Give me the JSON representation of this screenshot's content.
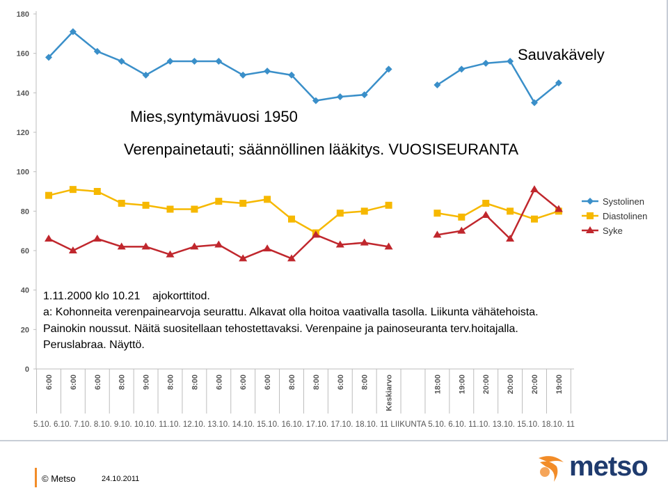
{
  "chart_data": {
    "type": "line",
    "ylim": [
      0,
      180
    ],
    "yticks": [
      0,
      20,
      40,
      60,
      80,
      100,
      120,
      140,
      160,
      180
    ],
    "categories": [
      {
        "time": "6:00",
        "date": "5.10."
      },
      {
        "time": "6:00",
        "date": "6.10."
      },
      {
        "time": "6:00",
        "date": "7.10."
      },
      {
        "time": "8:00",
        "date": "8.10."
      },
      {
        "time": "9:00",
        "date": "9.10."
      },
      {
        "time": "8:00",
        "date": "10.10."
      },
      {
        "time": "8:00",
        "date": "11.10."
      },
      {
        "time": "6:00",
        "date": "12.10."
      },
      {
        "time": "6:00",
        "date": "13.10."
      },
      {
        "time": "6:00",
        "date": "14.10."
      },
      {
        "time": "8:00",
        "date": "15.10."
      },
      {
        "time": "8:00",
        "date": "16.10."
      },
      {
        "time": "6:00",
        "date": "17.10."
      },
      {
        "time": "8:00",
        "date": "17.10."
      },
      {
        "time": "Keskiarvo",
        "date": "18.10.11"
      },
      {
        "time": "",
        "date": "LIIKUNTA"
      },
      {
        "time": "18:00",
        "date": "5.10."
      },
      {
        "time": "19:00",
        "date": "6.10."
      },
      {
        "time": "20:00",
        "date": "11.10."
      },
      {
        "time": "20:00",
        "date": "13.10."
      },
      {
        "time": "20:00",
        "date": "15.10."
      },
      {
        "time": "19:00",
        "date": "18.10.11"
      }
    ],
    "x_date_labels_text": "5.10. 6.10. 7.10. 8.10. 9.10. 10.10. 11.10. 12.10. 13.10. 14.10. 15.10. 16.10. 17.10. 17.10. 18.10. 11 LIIKUNTA 5.10. 6.10. 11.10. 13.10. 15.10. 18.10. 11",
    "series": [
      {
        "name": "Systolinen",
        "color": "#3a8fc9",
        "marker": "diamond",
        "values": [
          158,
          171,
          161,
          156,
          149,
          156,
          156,
          156,
          149,
          151,
          149,
          136,
          138,
          139,
          152,
          null,
          144,
          152,
          155,
          156,
          135,
          145
        ]
      },
      {
        "name": "Diastolinen",
        "color": "#f6b800",
        "marker": "square",
        "values": [
          88,
          91,
          90,
          84,
          83,
          81,
          81,
          85,
          84,
          86,
          76,
          69,
          79,
          80,
          83,
          null,
          79,
          77,
          84,
          80,
          76,
          80
        ]
      },
      {
        "name": "Syke",
        "color": "#c0272d",
        "marker": "triangle",
        "values": [
          66,
          60,
          66,
          62,
          62,
          58,
          62,
          63,
          56,
          61,
          56,
          68,
          63,
          64,
          62,
          null,
          68,
          70,
          78,
          66,
          91,
          81
        ]
      }
    ]
  },
  "titles": {
    "exercise": "Sauvakävely",
    "person": "Mies,syntymävuosi 1950",
    "condition": "Verenpainetauti; säännöllinen lääkitys. VUOSISEURANTA"
  },
  "notes": {
    "line1": "1.11.2000 klo 10.21    ajokorttitod.",
    "line2": "a: Kohonneita verenpainearvoja seurattu. Alkavat olla hoitoa vaativalla tasolla. Liikunta vähätehoista.",
    "line3": "Painokin noussut. Näitä suositellaan tehostettavaksi. Verenpaine ja painoseuranta terv.hoitajalla.",
    "line4": "Peruslabraa. Näyttö."
  },
  "footer": {
    "copyright": "© Metso",
    "date": "24.10.2011",
    "logo_text": "metso",
    "logo_colors": {
      "mark": "#f28c28",
      "text": "#1f3b6e"
    }
  }
}
